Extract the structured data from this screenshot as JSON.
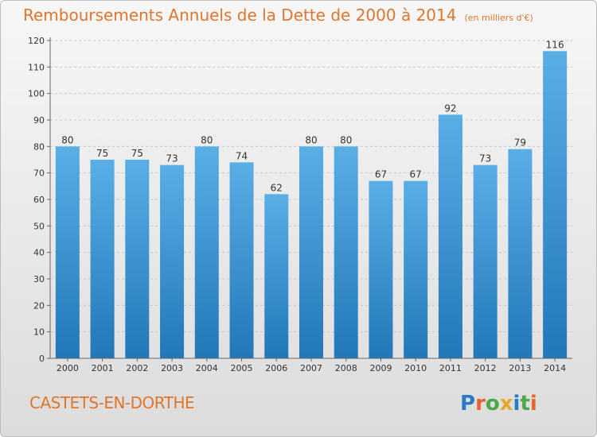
{
  "title": "Remboursements Annuels de la Dette de 2000 à 2014",
  "unit": "(en milliers d'€)",
  "location": "CASTETS-EN-DORTHE",
  "logo_text": "Proxiti",
  "colors": {
    "title": "#e0752c",
    "bar_top": "#5aaee6",
    "bar_bottom": "#2277b8",
    "grid": "#c8c8c8",
    "axis_text": "#333333"
  },
  "chart_data": {
    "type": "bar",
    "title": "Remboursements Annuels de la Dette de 2000 à 2014",
    "xlabel": "",
    "ylabel": "",
    "categories": [
      "2000",
      "2001",
      "2002",
      "2003",
      "2004",
      "2005",
      "2006",
      "2007",
      "2008",
      "2009",
      "2010",
      "2011",
      "2012",
      "2013",
      "2014"
    ],
    "values": [
      80,
      75,
      75,
      73,
      80,
      74,
      62,
      80,
      80,
      67,
      67,
      92,
      73,
      79,
      116
    ],
    "ylim": [
      0,
      120
    ],
    "yticks": [
      0,
      10,
      20,
      30,
      40,
      50,
      60,
      70,
      80,
      90,
      100,
      110,
      120
    ],
    "grid": true,
    "data_labels": true
  }
}
